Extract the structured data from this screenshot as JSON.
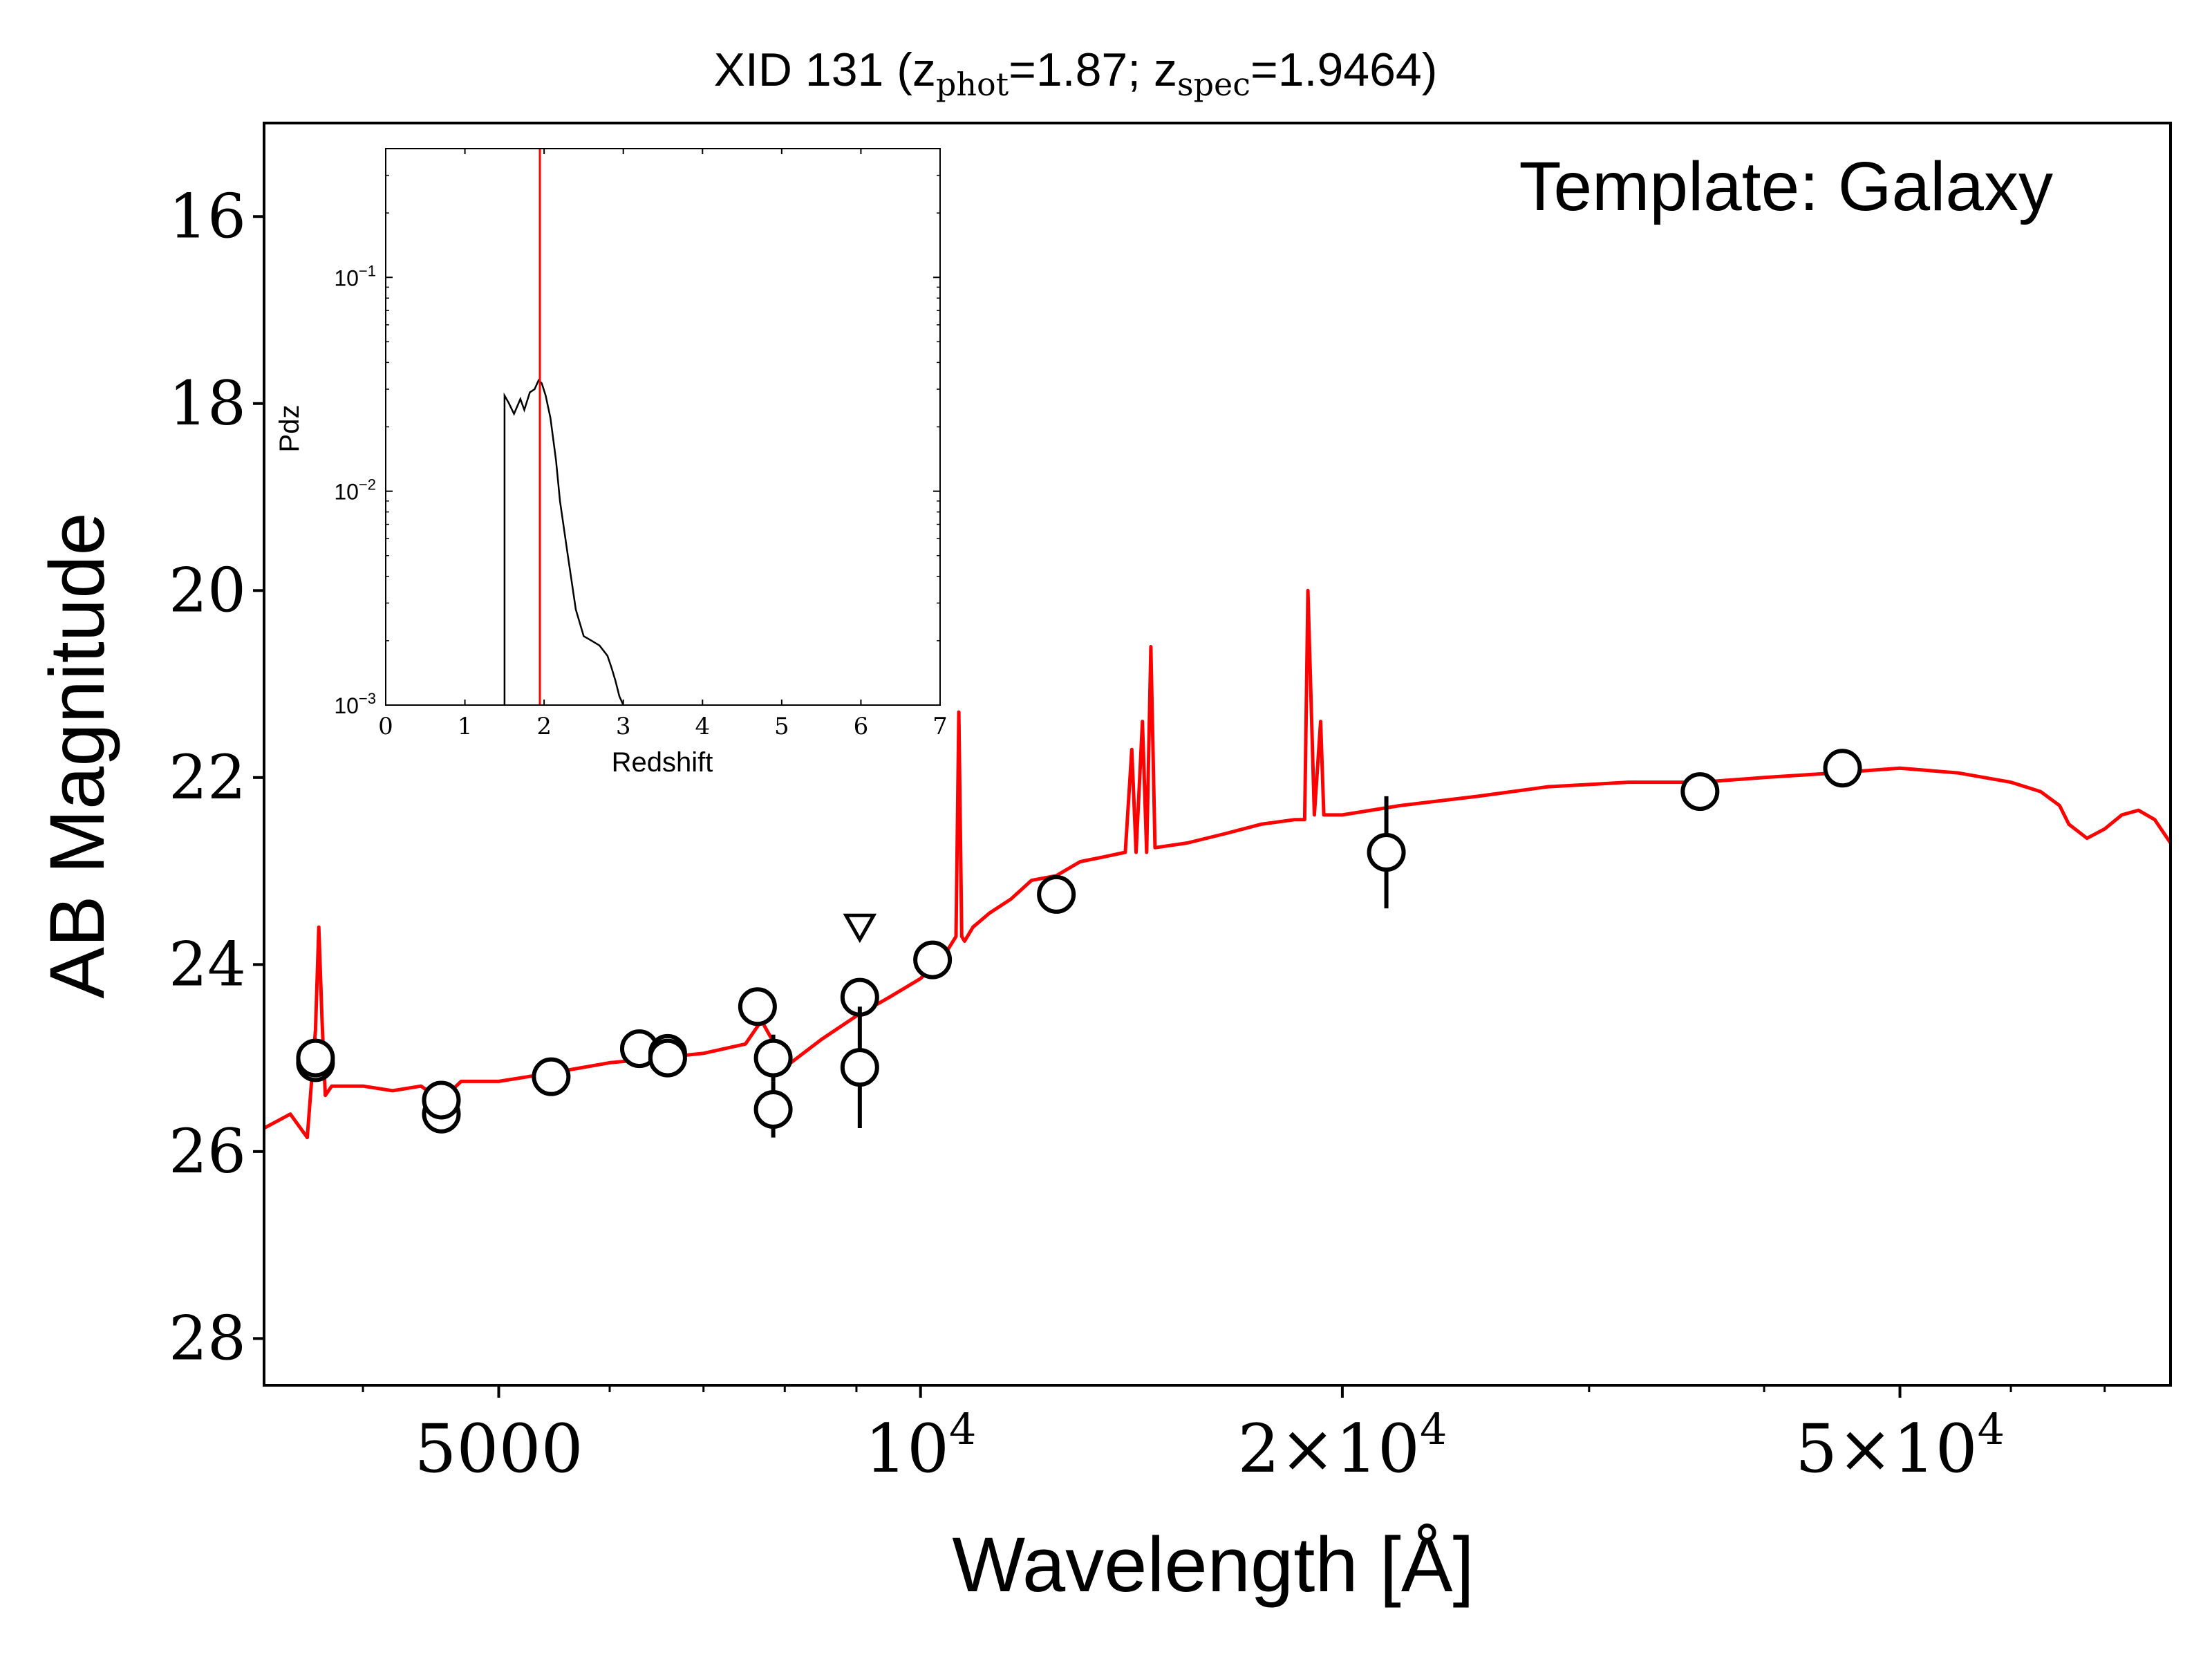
{
  "chart_data": [
    {
      "type": "scatter",
      "title_main": "XID 131 (z",
      "title_sub1": "phot",
      "title_mid": "=1.87; z",
      "title_sub2": "spec",
      "title_end": "=1.9464)",
      "annotation": "Template: Galaxy",
      "xlabel": "Wavelength [Å]",
      "ylabel": "AB Magnitude",
      "xscale": "log",
      "xlim": [
        3400,
        78000
      ],
      "ylim": [
        28.5,
        15.0
      ],
      "x_ticks": [
        {
          "value": 5000,
          "mantissa": "5000",
          "exp": ""
        },
        {
          "value": 10000,
          "mantissa": "10",
          "exp": "4"
        },
        {
          "value": 20000,
          "mantissa": "2×10",
          "exp": "4"
        },
        {
          "value": 50000,
          "mantissa": "5×10",
          "exp": "4"
        }
      ],
      "y_ticks": [
        "16",
        "18",
        "20",
        "22",
        "24",
        "26",
        "28"
      ],
      "points": [
        {
          "x": 3700,
          "y": 25.05,
          "yerr": 0
        },
        {
          "x": 3700,
          "y": 25.0,
          "yerr": 0
        },
        {
          "x": 4550,
          "y": 25.6,
          "yerr": 0
        },
        {
          "x": 4550,
          "y": 25.45,
          "yerr": 0
        },
        {
          "x": 5450,
          "y": 25.2,
          "yerr": 0
        },
        {
          "x": 6300,
          "y": 24.9,
          "yerr": 0
        },
        {
          "x": 6600,
          "y": 24.95,
          "yerr": 0
        },
        {
          "x": 6600,
          "y": 25.0,
          "yerr": 0
        },
        {
          "x": 7650,
          "y": 24.45,
          "yerr": 0
        },
        {
          "x": 7850,
          "y": 25.0,
          "yerr": 0.25
        },
        {
          "x": 7850,
          "y": 25.55,
          "yerr": 0.3
        },
        {
          "x": 9050,
          "y": 24.35,
          "yerr": 0.2
        },
        {
          "x": 9050,
          "y": 25.1,
          "yerr": 0.65
        },
        {
          "x": 10200,
          "y": 23.95,
          "yerr": 0
        },
        {
          "x": 12500,
          "y": 23.25,
          "yerr": 0
        },
        {
          "x": 21500,
          "y": 22.8,
          "yerr": 0.6
        },
        {
          "x": 36000,
          "y": 22.15,
          "yerr": 0
        },
        {
          "x": 45500,
          "y": 21.9,
          "yerr": 0
        }
      ],
      "upper_limits": [
        {
          "x": 9050,
          "y": 23.6
        }
      ],
      "series": [
        {
          "name": "",
          "color": "#ff0000",
          "x": [
            3400,
            3550,
            3650,
            3700,
            3720,
            3740,
            3760,
            3800,
            4000,
            4200,
            4400,
            4550,
            4700,
            5000,
            5500,
            6000,
            6500,
            7000,
            7500,
            7700,
            7900,
            8000,
            8500,
            9000,
            9500,
            10000,
            10400,
            10600,
            10650,
            10700,
            10750,
            10900,
            11200,
            11600,
            12000,
            12500,
            13000,
            13500,
            14000,
            14150,
            14250,
            14400,
            14500,
            14600,
            14700,
            15500,
            16500,
            17500,
            18500,
            18800,
            18900,
            19100,
            19300,
            19400,
            20000,
            22000,
            25000,
            28000,
            32000,
            36000,
            40000,
            45000,
            50000,
            55000,
            60000,
            63000,
            65000,
            66000,
            68000,
            70000,
            72000,
            74000,
            76000,
            78000
          ],
          "y": [
            25.75,
            25.6,
            25.85,
            24.7,
            23.6,
            24.6,
            25.4,
            25.3,
            25.3,
            25.35,
            25.3,
            25.45,
            25.25,
            25.25,
            25.15,
            25.05,
            25.0,
            24.95,
            24.85,
            24.6,
            24.9,
            25.1,
            24.8,
            24.55,
            24.35,
            24.15,
            23.9,
            23.7,
            21.3,
            23.7,
            23.75,
            23.6,
            23.45,
            23.3,
            23.1,
            23.05,
            22.9,
            22.85,
            22.8,
            21.7,
            22.8,
            21.4,
            22.8,
            20.6,
            22.75,
            22.7,
            22.6,
            22.5,
            22.45,
            22.45,
            20.0,
            22.4,
            21.4,
            22.4,
            22.4,
            22.3,
            22.2,
            22.1,
            22.05,
            22.05,
            22.0,
            21.95,
            21.9,
            21.95,
            22.05,
            22.15,
            22.3,
            22.5,
            22.65,
            22.55,
            22.4,
            22.35,
            22.45,
            22.7
          ]
        }
      ]
    },
    {
      "type": "line",
      "xlabel": "Redshift",
      "ylabel": "Pdz",
      "yscale": "log",
      "xlim": [
        0,
        7
      ],
      "ylim": [
        0.001,
        0.4
      ],
      "x_ticks": [
        "0",
        "1",
        "2",
        "3",
        "4",
        "5",
        "6",
        "7"
      ],
      "y_ticks": [
        {
          "value": 0.1,
          "mantissa": "10",
          "exp": "−1"
        },
        {
          "value": 0.01,
          "mantissa": "10",
          "exp": "−2"
        },
        {
          "value": 0.001,
          "mantissa": "10",
          "exp": "−3"
        }
      ],
      "marker_line_x": 1.9464,
      "marker_line_color": "#ff0000",
      "series": [
        {
          "name": "",
          "color": "#000000",
          "x": [
            1.5,
            1.5,
            1.55,
            1.62,
            1.7,
            1.75,
            1.82,
            1.88,
            1.93,
            1.97,
            2.02,
            2.08,
            2.15,
            2.2,
            2.3,
            2.4,
            2.5,
            2.6,
            2.7,
            2.8,
            2.85,
            2.9,
            2.95,
            3.0
          ],
          "y": [
            0.001,
            0.028,
            0.026,
            0.023,
            0.027,
            0.024,
            0.029,
            0.03,
            0.033,
            0.032,
            0.028,
            0.022,
            0.014,
            0.009,
            0.005,
            0.0028,
            0.0021,
            0.002,
            0.0019,
            0.0017,
            0.0015,
            0.0013,
            0.0011,
            0.001
          ]
        }
      ]
    }
  ]
}
